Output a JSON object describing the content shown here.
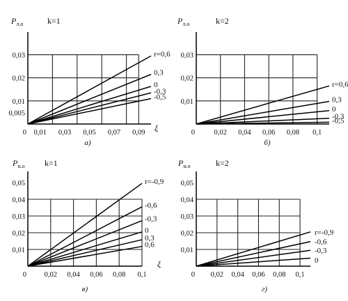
{
  "chart_data": [
    {
      "type": "line",
      "caption": "а)",
      "ylabel_main": "P",
      "ylabel_sub": "л.о",
      "k_label": "k=1",
      "xlabel": "ξ",
      "xlim": [
        0,
        0.1
      ],
      "ylim": [
        0,
        0.035
      ],
      "x_ticks": [
        "0",
        "0,01",
        "0,03",
        "0,05",
        "0,07",
        "0,09"
      ],
      "x_tick_values": [
        0,
        0.01,
        0.03,
        0.05,
        0.07,
        0.09
      ],
      "y_ticks": [
        "0,005",
        "0,01",
        "0,02",
        "0,03"
      ],
      "y_tick_values": [
        0.005,
        0.01,
        0.02,
        0.03
      ],
      "grid_x": [
        0.02,
        0.04,
        0.06,
        0.08
      ],
      "grid_y": [
        0.01,
        0.02,
        0.03
      ],
      "series": [
        {
          "name": "r=0,6",
          "x": [
            0,
            0.1
          ],
          "y": [
            0,
            0.0295
          ]
        },
        {
          "name": "0,3",
          "x": [
            0,
            0.1
          ],
          "y": [
            0,
            0.0215
          ]
        },
        {
          "name": "0",
          "x": [
            0,
            0.1
          ],
          "y": [
            0,
            0.0163
          ]
        },
        {
          "name": "-0,3",
          "x": [
            0,
            0.1
          ],
          "y": [
            0,
            0.0135
          ]
        },
        {
          "name": "-0,5",
          "x": [
            0,
            0.1
          ],
          "y": [
            0,
            0.011
          ]
        }
      ]
    },
    {
      "type": "line",
      "caption": "б)",
      "ylabel_main": "P",
      "ylabel_sub": "л.о",
      "k_label": "k=2",
      "xlabel": "",
      "xlim": [
        0,
        0.11
      ],
      "ylim": [
        0,
        0.035
      ],
      "x_ticks": [
        "0",
        "0,02",
        "0,04",
        "0,06",
        "0,08",
        "0,1"
      ],
      "x_tick_values": [
        0,
        0.02,
        0.04,
        0.06,
        0.08,
        0.1
      ],
      "y_ticks": [
        "0,01",
        "0,02",
        "0,03"
      ],
      "y_tick_values": [
        0.01,
        0.02,
        0.03
      ],
      "grid_x": [
        0.02,
        0.04,
        0.06,
        0.08
      ],
      "grid_y": [
        0.01,
        0.02,
        0.03
      ],
      "series": [
        {
          "name": "r=0,6",
          "x": [
            0,
            0.11
          ],
          "y": [
            0,
            0.0165
          ]
        },
        {
          "name": "0,3",
          "x": [
            0,
            0.11
          ],
          "y": [
            0,
            0.0098
          ]
        },
        {
          "name": "0",
          "x": [
            0,
            0.11
          ],
          "y": [
            0,
            0.0058
          ]
        },
        {
          "name": "-0,3",
          "x": [
            0,
            0.11
          ],
          "y": [
            0,
            0.0025
          ]
        },
        {
          "name": "-0,5",
          "x": [
            0,
            0.11
          ],
          "y": [
            0,
            0.0008
          ]
        }
      ]
    },
    {
      "type": "line",
      "caption": "в)",
      "ylabel_main": "P",
      "ylabel_sub": "н.о",
      "k_label": "k=1",
      "xlabel": "ξ",
      "xlim": [
        0,
        0.1
      ],
      "ylim": [
        0,
        0.05
      ],
      "x_ticks": [
        "0",
        "0,02",
        "0,04",
        "0,06",
        "0,08",
        "0,1"
      ],
      "x_tick_values": [
        0,
        0.02,
        0.04,
        0.06,
        0.08,
        0.1
      ],
      "y_ticks": [
        "0,01",
        "0,02",
        "0,03",
        "0,04",
        "0,05"
      ],
      "y_tick_values": [
        0.01,
        0.02,
        0.03,
        0.04,
        0.05
      ],
      "grid_x": [
        0.02,
        0.04,
        0.06,
        0.08
      ],
      "grid_y": [
        0.01,
        0.02,
        0.03,
        0.04
      ],
      "series": [
        {
          "name": "r=-0,9",
          "x": [
            0,
            0.1
          ],
          "y": [
            0,
            0.0495
          ]
        },
        {
          "name": "-0,6",
          "x": [
            0,
            0.1
          ],
          "y": [
            0,
            0.0355
          ]
        },
        {
          "name": "-0,3",
          "x": [
            0,
            0.1
          ],
          "y": [
            0,
            0.0272
          ]
        },
        {
          "name": "0",
          "x": [
            0,
            0.1
          ],
          "y": [
            0,
            0.0205
          ]
        },
        {
          "name": "0,3",
          "x": [
            0,
            0.1
          ],
          "y": [
            0,
            0.0158
          ]
        },
        {
          "name": "0,6",
          "x": [
            0,
            0.1
          ],
          "y": [
            0,
            0.0118
          ]
        }
      ]
    },
    {
      "type": "line",
      "caption": "г)",
      "ylabel_main": "P",
      "ylabel_sub": "н.о",
      "k_label": "k=2",
      "xlabel": "",
      "xlim": [
        0,
        0.11
      ],
      "ylim": [
        0,
        0.05
      ],
      "x_ticks": [
        "0",
        "0,02",
        "0,04",
        "0,06",
        "0,08",
        "0,1"
      ],
      "x_tick_values": [
        0,
        0.02,
        0.04,
        0.06,
        0.08,
        0.1
      ],
      "y_ticks": [
        "0,01",
        "0,02",
        "0,03",
        "0,04",
        "0,05"
      ],
      "y_tick_values": [
        0.01,
        0.02,
        0.03,
        0.04,
        0.05
      ],
      "grid_x": [
        0.02,
        0.04,
        0.06,
        0.08
      ],
      "grid_y": [
        0.01,
        0.02,
        0.03,
        0.04
      ],
      "series": [
        {
          "name": "r=-0,9",
          "x": [
            0,
            0.11
          ],
          "y": [
            0,
            0.0205
          ]
        },
        {
          "name": "-0,6",
          "x": [
            0,
            0.11
          ],
          "y": [
            0,
            0.0147
          ]
        },
        {
          "name": "-0,3",
          "x": [
            0,
            0.11
          ],
          "y": [
            0,
            0.0095
          ]
        },
        {
          "name": "0",
          "x": [
            0,
            0.11
          ],
          "y": [
            0,
            0.0048
          ]
        }
      ],
      "series_labels": [
        {
          "text": "r=-0,9",
          "at_y": 0.0205
        },
        {
          "text": "-0,6",
          "at_y": 0.0147
        },
        {
          "text": "-0,3",
          "at_y": 0.0095
        },
        {
          "text": "0",
          "at_y": 0.0038
        }
      ]
    }
  ]
}
